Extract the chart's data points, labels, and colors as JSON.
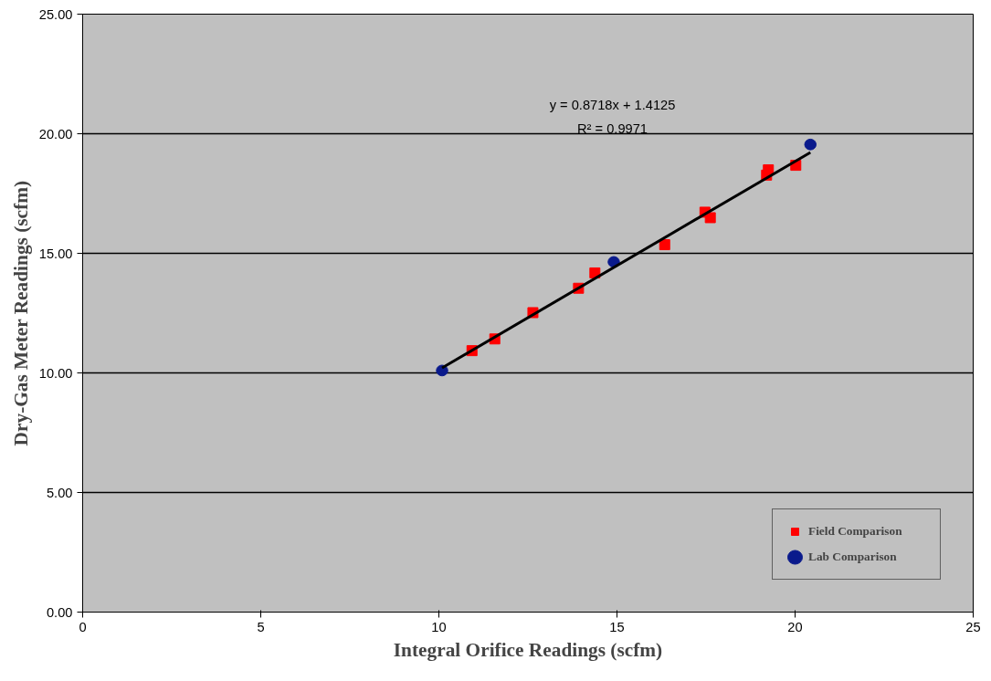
{
  "chart_data": {
    "type": "scatter",
    "xlabel": "Integral Orifice Readings (scfm)",
    "ylabel": "Dry-Gas Meter Readings (scfm)",
    "xlim": [
      0,
      25
    ],
    "ylim": [
      0,
      25
    ],
    "xticks": [
      0,
      5,
      10,
      15,
      20,
      25
    ],
    "yticks": [
      {
        "value": 0,
        "label": "0.00"
      },
      {
        "value": 5,
        "label": "5.00"
      },
      {
        "value": 10,
        "label": "10.00"
      },
      {
        "value": 15,
        "label": "15.00"
      },
      {
        "value": 20,
        "label": "20.00"
      },
      {
        "value": 25,
        "label": "25.00"
      }
    ],
    "grid": "y",
    "legend": "bottom right",
    "series": [
      {
        "name": "Field Comparison",
        "color": "#ff0000",
        "marker": "square",
        "x": [
          10.93,
          11.57,
          12.64,
          13.92,
          14.38,
          16.34,
          17.47,
          17.62,
          19.2,
          19.25,
          20.02
        ],
        "values": [
          10.93,
          11.42,
          12.52,
          13.54,
          14.18,
          15.36,
          16.72,
          16.49,
          18.27,
          18.49,
          18.68
        ]
      },
      {
        "name": "Lab Comparison",
        "color": "#0a1a8c",
        "marker": "circle",
        "x": [
          10.09,
          14.91,
          20.43
        ],
        "values": [
          10.1,
          14.64,
          19.55
        ]
      },
      {
        "type": "line",
        "color": "#000000",
        "line_style": "solid",
        "marker": "none",
        "x": [
          10.09,
          20.43
        ],
        "values": [
          10.21,
          19.22
        ]
      }
    ],
    "annotations": [
      "y = 0.8718x + 1.4125",
      "R² = 0.9971"
    ]
  }
}
